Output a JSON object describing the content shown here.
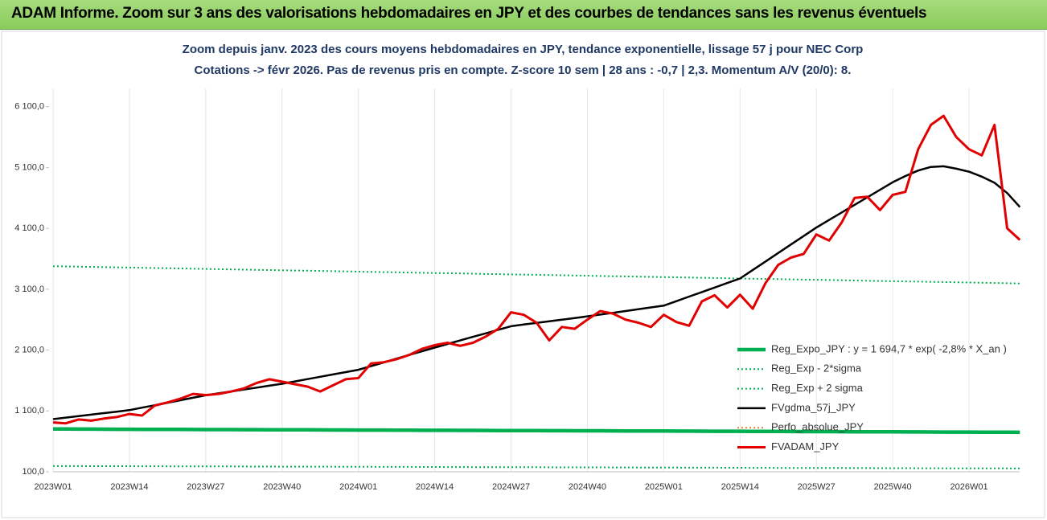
{
  "header": {
    "title": "ADAM Informe. Zoom sur 3 ans des valorisations hebdomadaires en JPY et des courbes de tendances sans les revenus éventuels"
  },
  "chart_data": {
    "type": "line",
    "title": "Zoom depuis janv. 2023 des cours moyens hebdomadaires en JPY, tendance exponentielle, lissage 57 j pour NEC Corp",
    "subtitle": "Cotations -> févr 2026. Pas de revenus pris en compte. Z-score 10 sem | 28 ans : -0,7 | 2,3. Momentum A/V (20/0): 8.",
    "categories": [
      "2023W01",
      null,
      null,
      null,
      null,
      null,
      "2023W14",
      null,
      null,
      null,
      null,
      null,
      "2023W27",
      null,
      null,
      null,
      null,
      null,
      "2023W40",
      null,
      null,
      null,
      null,
      null,
      "2024W01",
      null,
      null,
      null,
      null,
      null,
      "2024W14",
      null,
      null,
      null,
      null,
      null,
      "2024W27",
      null,
      null,
      null,
      null,
      null,
      "2024W40",
      null,
      null,
      null,
      null,
      null,
      "2025W01",
      null,
      null,
      null,
      null,
      null,
      "2025W14",
      null,
      null,
      null,
      null,
      null,
      "2025W27",
      null,
      null,
      null,
      null,
      null,
      "2025W40",
      null,
      null,
      null,
      null,
      null,
      "2026W01",
      null,
      null,
      null,
      null
    ],
    "ylim": [
      100,
      6400
    ],
    "yticks": [
      {
        "value": 100,
        "label": "100,0"
      },
      {
        "value": 1100,
        "label": "1 100,0"
      },
      {
        "value": 2100,
        "label": "2 100,0"
      },
      {
        "value": 3100,
        "label": "3 100,0"
      },
      {
        "value": 4100,
        "label": "4 100,0"
      },
      {
        "value": 5100,
        "label": "5 100,0"
      },
      {
        "value": 6100,
        "label": "6 100,0"
      }
    ],
    "grid": "x",
    "series": [
      {
        "name": "Reg_Expo_JPY : y = 1 694,7 * exp( -2,8% *  X_an )",
        "color": "#00b050",
        "style": "thick",
        "values": [
          803,
          802,
          801,
          801,
          800,
          799,
          799,
          798,
          797,
          797,
          796,
          795,
          794,
          794,
          793,
          792,
          792,
          791,
          790,
          790,
          789,
          788,
          787,
          787,
          786,
          785,
          785,
          784,
          783,
          782,
          782,
          781,
          780,
          780,
          779,
          778,
          777,
          777,
          776,
          775,
          775,
          774,
          773,
          773,
          772,
          771,
          770,
          770,
          769,
          768,
          768,
          767,
          766,
          766,
          765,
          764,
          763,
          763,
          762,
          761,
          760,
          760,
          759,
          758,
          758,
          757,
          756,
          755,
          755,
          754,
          753,
          753,
          752,
          751,
          751,
          750,
          749
        ]
      },
      {
        "name": "Reg_Exp - 2*sigma",
        "color": "#00b050",
        "style": "dotted",
        "values": [
          195,
          194,
          194,
          193,
          193,
          192,
          192,
          191,
          191,
          190,
          190,
          189,
          189,
          188,
          188,
          187,
          186,
          186,
          185,
          185,
          184,
          184,
          183,
          183,
          182,
          182,
          181,
          181,
          180,
          179,
          179,
          178,
          178,
          177,
          177,
          176,
          176,
          175,
          175,
          174,
          173,
          173,
          172,
          172,
          171,
          171,
          170,
          170,
          169,
          169,
          168,
          168,
          167,
          166,
          166,
          165,
          165,
          164,
          164,
          163,
          163,
          162,
          162,
          161,
          161,
          160,
          159,
          159,
          158,
          158,
          157,
          157,
          156,
          156,
          155,
          155,
          154
        ]
      },
      {
        "name": "Reg_Exp + 2 sigma",
        "color": "#00b050",
        "style": "dotted",
        "values": [
          3478,
          3474,
          3471,
          3467,
          3463,
          3459,
          3456,
          3452,
          3448,
          3445,
          3441,
          3437,
          3433,
          3430,
          3426,
          3422,
          3418,
          3415,
          3411,
          3407,
          3404,
          3400,
          3396,
          3392,
          3389,
          3385,
          3381,
          3378,
          3374,
          3370,
          3366,
          3363,
          3359,
          3355,
          3351,
          3348,
          3344,
          3340,
          3337,
          3333,
          3329,
          3325,
          3322,
          3318,
          3314,
          3311,
          3307,
          3303,
          3299,
          3296,
          3292,
          3288,
          3285,
          3281,
          3277,
          3273,
          3270,
          3266,
          3262,
          3258,
          3255,
          3251,
          3247,
          3244,
          3240,
          3236,
          3232,
          3229,
          3225,
          3221,
          3218,
          3214,
          3210,
          3206,
          3203,
          3199,
          3195
        ]
      },
      {
        "name": "FVgdma_57j_JPY",
        "color": "#000000",
        "style": "solid",
        "values": [
          965,
          990,
          1014,
          1039,
          1064,
          1088,
          1113,
          1154,
          1194,
          1235,
          1276,
          1316,
          1357,
          1389,
          1420,
          1452,
          1483,
          1515,
          1546,
          1584,
          1623,
          1661,
          1699,
          1738,
          1776,
          1837,
          1898,
          1959,
          2020,
          2080,
          2141,
          2200,
          2258,
          2317,
          2375,
          2434,
          2492,
          2519,
          2546,
          2573,
          2600,
          2627,
          2654,
          2683,
          2713,
          2742,
          2771,
          2801,
          2830,
          2904,
          2979,
          3053,
          3127,
          3202,
          3276,
          3416,
          3555,
          3695,
          3835,
          3974,
          4114,
          4238,
          4362,
          4486,
          4609,
          4733,
          4857,
          4960,
          5050,
          5110,
          5120,
          5080,
          5032,
          4950,
          4850,
          4680,
          4451
        ]
      },
      {
        "name": "Perfo_absolue_JPY",
        "color": "#ed7d31",
        "style": "dotted"
      },
      {
        "name": "FVADAM_JPY",
        "color": "#e00000",
        "style": "bold",
        "values": [
          911,
          897,
          960,
          940,
          975,
          1000,
          1050,
          1025,
          1190,
          1240,
          1300,
          1380,
          1360,
          1380,
          1420,
          1470,
          1560,
          1620,
          1580,
          1540,
          1500,
          1420,
          1520,
          1620,
          1640,
          1880,
          1900,
          1950,
          2020,
          2120,
          2180,
          2220,
          2170,
          2220,
          2320,
          2450,
          2720,
          2680,
          2550,
          2260,
          2480,
          2450,
          2600,
          2740,
          2700,
          2600,
          2550,
          2480,
          2680,
          2560,
          2500,
          2900,
          3000,
          2800,
          3010,
          2780,
          3200,
          3500,
          3620,
          3680,
          4000,
          3900,
          4200,
          4600,
          4620,
          4400,
          4650,
          4700,
          5400,
          5800,
          5950,
          5600,
          5400,
          5300,
          5800,
          4100,
          3910
        ]
      }
    ]
  }
}
